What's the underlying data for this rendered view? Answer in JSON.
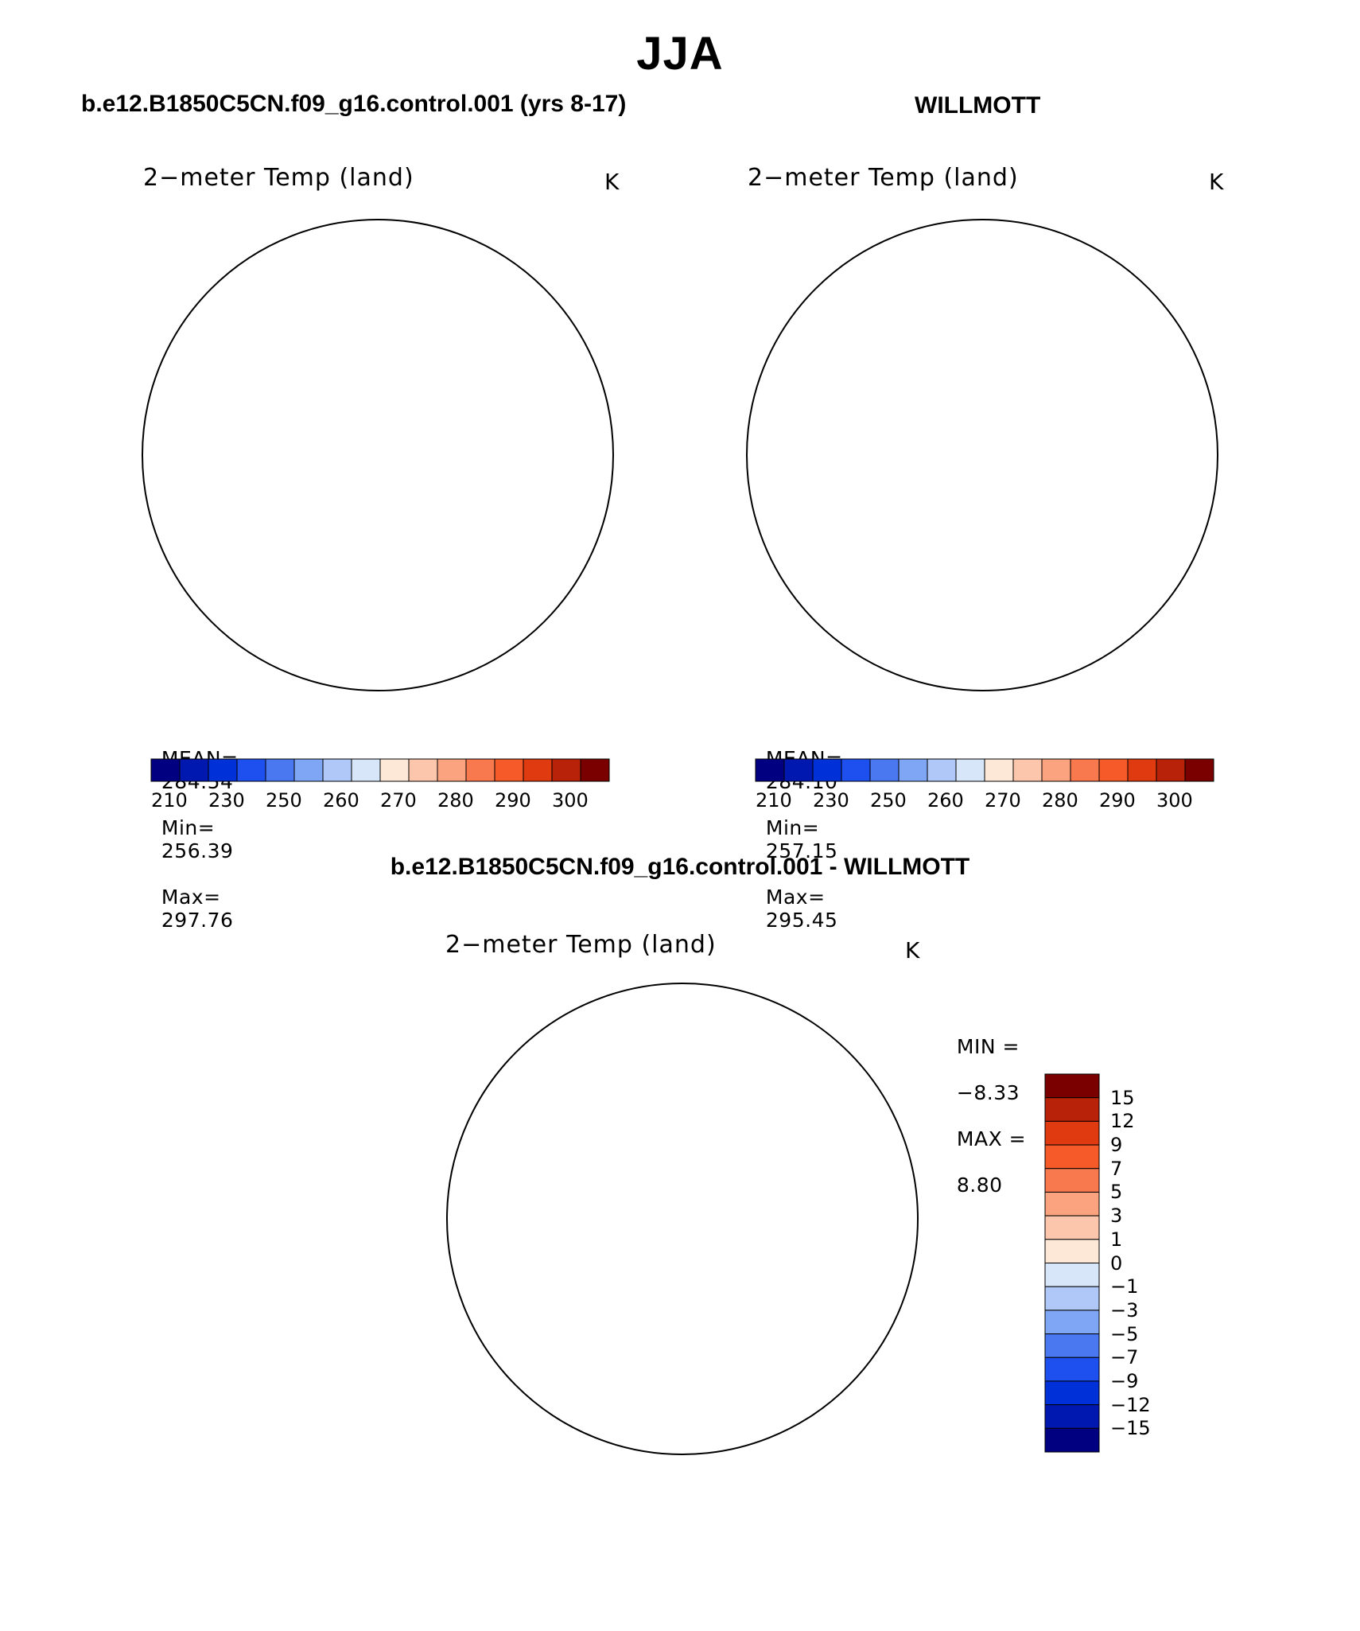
{
  "figure": {
    "season": "JJA",
    "left_case": "b.e12.B1850C5CN.f09_g16.control.001 (yrs 8-17)",
    "right_case": "WILLMOTT",
    "diff_case": "b.e12.B1850C5CN.f09_g16.control.001 - WILLMOTT"
  },
  "panels": {
    "left": {
      "variable": "2−meter Temp (land)",
      "units": "K",
      "mean_label": "MEAN=",
      "mean": "284.54",
      "min_label": "Min=",
      "min": "256.39",
      "max_label": "Max=",
      "max": "297.76"
    },
    "right": {
      "variable": "2−meter Temp (land)",
      "units": "K",
      "mean_label": "MEAN=",
      "mean": "284.10",
      "min_label": "Min=",
      "min": "257.15",
      "max_label": "Max=",
      "max": "295.45"
    },
    "diff": {
      "variable": "2−meter Temp (land)",
      "units": "K",
      "min_label": "MIN =",
      "min": "−8.33",
      "max_label": "MAX =",
      "max": "8.80"
    }
  },
  "colorbars": {
    "abs": {
      "colors": [
        "#000080",
        "#0018b0",
        "#0030d8",
        "#1e50f0",
        "#4a78f0",
        "#7fa6f4",
        "#b0c8f8",
        "#d8e6fa",
        "#fde8d8",
        "#fcc6ac",
        "#fba27e",
        "#f9794e",
        "#f65a28",
        "#e03a10",
        "#b82208",
        "#7a0000"
      ],
      "tick_labels": [
        "210",
        "230",
        "250",
        "260",
        "270",
        "280",
        "290",
        "300"
      ]
    },
    "diff": {
      "colors": [
        "#7a0000",
        "#b82208",
        "#e03a10",
        "#f65a28",
        "#f9794e",
        "#fba27e",
        "#fcc6ac",
        "#fde8d8",
        "#d8e6fa",
        "#b0c8f8",
        "#7fa6f4",
        "#4a78f0",
        "#1e50f0",
        "#0030d8",
        "#0018b0",
        "#000080"
      ],
      "tick_labels": [
        "15",
        "12",
        "9",
        "7",
        "5",
        "3",
        "1",
        "0",
        "−1",
        "−3",
        "−5",
        "−7",
        "−9",
        "−12",
        "−15"
      ]
    }
  },
  "land_colors": {
    "left_mainland": "#f2592a",
    "left_hot": "#e23d12",
    "left_mid": "#f9794e",
    "left_cool": "#fcc6ac",
    "ice": "#d8e6fa",
    "diff_warm": "#fcc6ac",
    "diff_cool": "#b0c8f8",
    "diff_strong_cool": "#4a78f0"
  }
}
